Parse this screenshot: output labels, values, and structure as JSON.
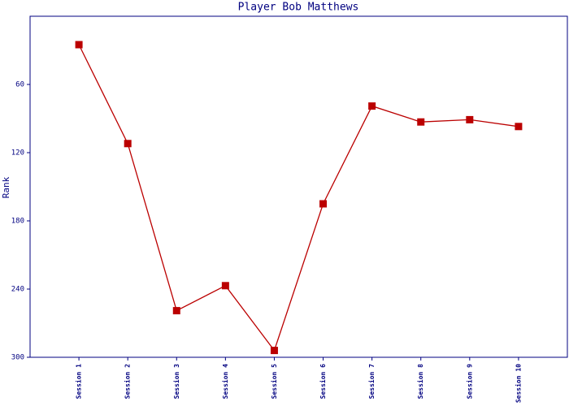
{
  "chart_data": {
    "type": "line",
    "title": "Player Bob Matthews",
    "y_label": "Rank",
    "categories": [
      "Session 1",
      "Session 2",
      "Session 3",
      "Session 4",
      "Session 5",
      "Session 6",
      "Session 7",
      "Session 8",
      "Session 9",
      "Session 10"
    ],
    "series": [
      {
        "name": "Rank",
        "color": "#bb0000",
        "values": [
          25,
          112,
          259,
          237,
          294,
          165,
          79,
          93,
          91,
          97
        ]
      }
    ],
    "ylim": [
      300,
      0
    ],
    "yticks": [
      60,
      120,
      180,
      240,
      300
    ],
    "y_inverted": true
  }
}
